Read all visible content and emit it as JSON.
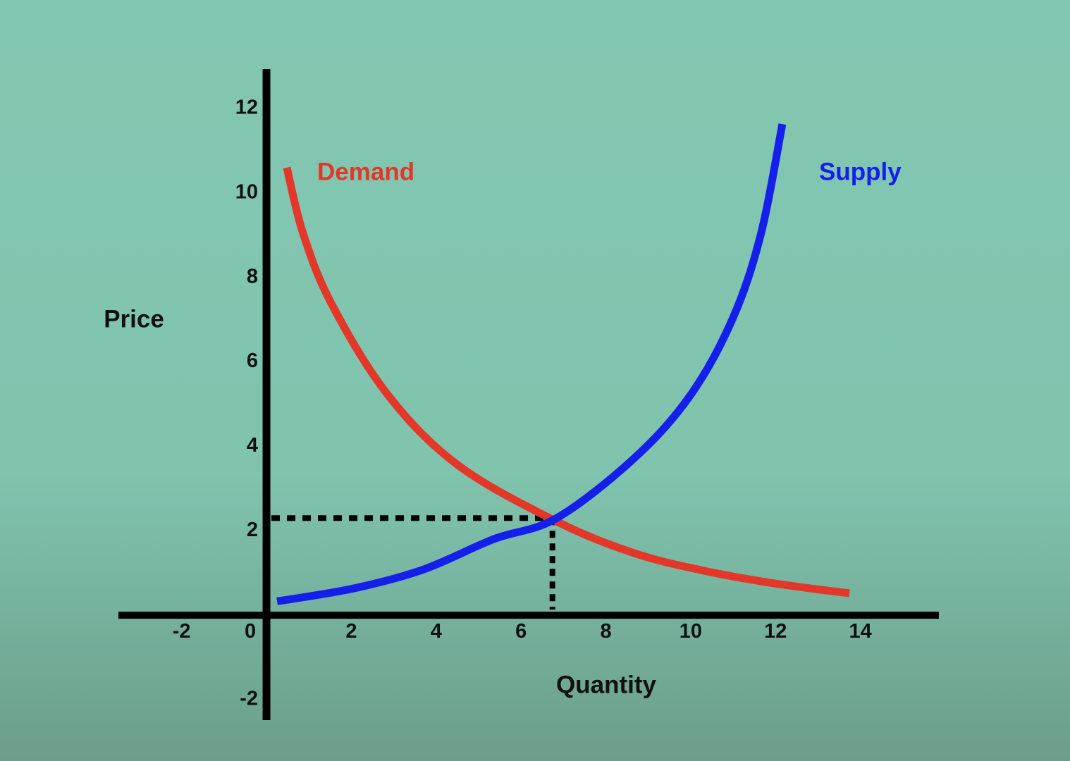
{
  "chart_data": {
    "type": "line",
    "x_label": "Quantity",
    "y_label": "Price",
    "xlim": [
      -3.49,
      15.85
    ],
    "ylim": [
      -2.45,
      12.9
    ],
    "xticks": [
      -2,
      0,
      2,
      4,
      6,
      8,
      10,
      12,
      14
    ],
    "yticks": [
      -2,
      2,
      4,
      6,
      8,
      10,
      12
    ],
    "grid": false,
    "series": [
      {
        "name": "Demand",
        "color": "#e3372a",
        "x": [
          0.48,
          0.86,
          1.53,
          2.86,
          4.52,
          6.84,
          8.67,
          10.33,
          12,
          13.74
        ],
        "values": [
          10.6,
          9.05,
          7.38,
          5.22,
          3.55,
          2.22,
          1.47,
          1.05,
          0.75,
          0.52
        ]
      },
      {
        "name": "Supply",
        "color": "#1420ea",
        "x": [
          0.25,
          2.03,
          3.69,
          5.35,
          6.84,
          8.67,
          10,
          11,
          11.66,
          12.16
        ],
        "values": [
          0.33,
          0.63,
          1.08,
          1.8,
          2.3,
          3.72,
          5.22,
          7.05,
          9.05,
          11.63
        ]
      }
    ],
    "equilibrium": {
      "x": 6.74,
      "y": 2.3
    }
  }
}
